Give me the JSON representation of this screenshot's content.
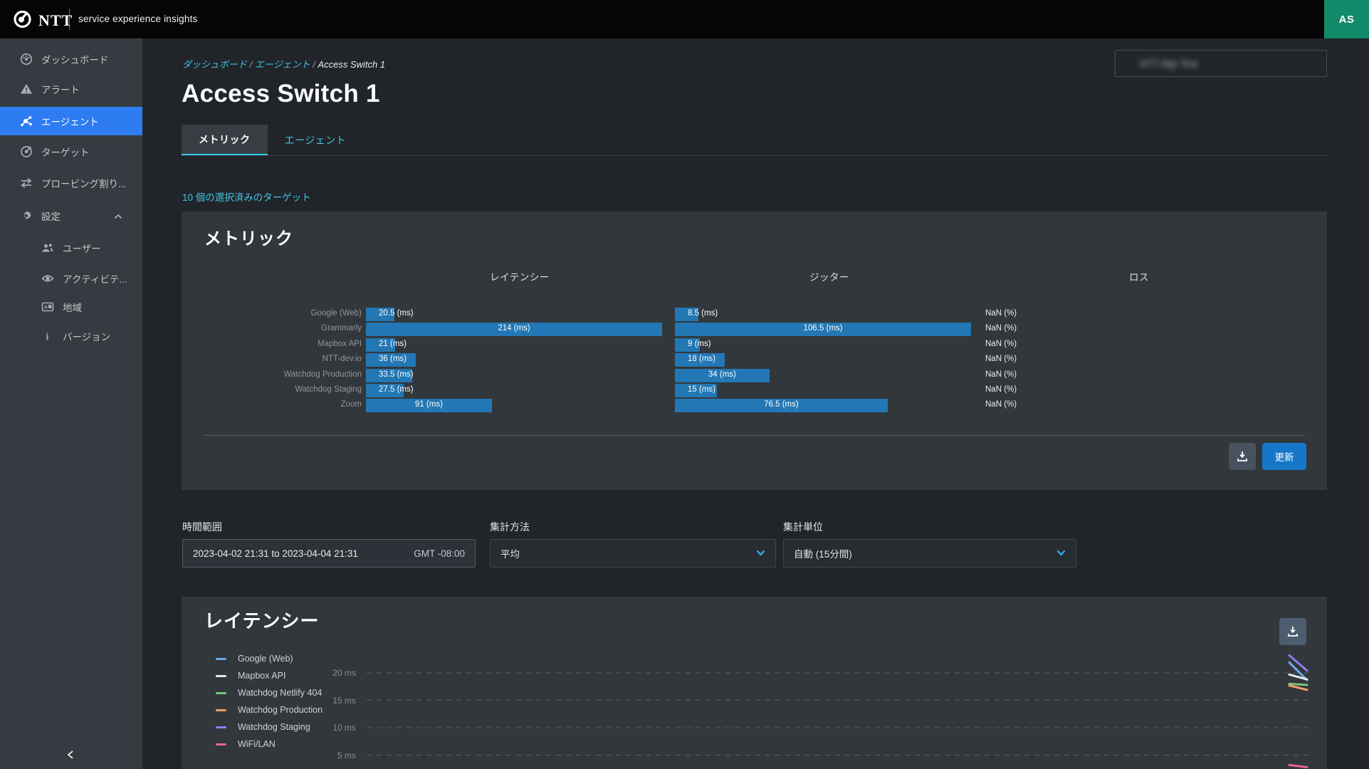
{
  "topbar": {
    "brand": "NTT",
    "product": "service experience insights",
    "avatar_initials": "AS"
  },
  "sidebar": {
    "items": [
      {
        "label": "ダッシュボード",
        "icon": "gauge-icon",
        "active": false
      },
      {
        "label": "アラート",
        "icon": "alert-icon",
        "active": false
      },
      {
        "label": "エージェント",
        "icon": "agents-icon",
        "active": true
      },
      {
        "label": "ターゲット",
        "icon": "target-icon",
        "active": false
      },
      {
        "label": "プロービング割り...",
        "icon": "swap-icon",
        "active": false
      },
      {
        "label": "設定",
        "icon": "gear-icon",
        "active": false,
        "expanded": true,
        "children": [
          {
            "label": "ユーザー",
            "icon": "users-icon"
          },
          {
            "label": "アクティビテ...",
            "icon": "eye-icon"
          },
          {
            "label": "地域",
            "icon": "regions-icon"
          },
          {
            "label": "バージョン",
            "icon": "info-icon"
          }
        ]
      }
    ]
  },
  "header": {
    "breadcrumb": [
      "ダッシュボード",
      "エージェント",
      "Access Switch 1"
    ],
    "separator": "/",
    "title": "Access Switch 1",
    "tabs": [
      {
        "label": "メトリック",
        "active": true
      },
      {
        "label": "エージェント",
        "active": false
      }
    ],
    "agent_selector_value": "NTT Mgr Test"
  },
  "selected_targets_link": "10 個の選択済みのターゲット",
  "metrics_card": {
    "title": "メトリック",
    "refresh_label": "更新",
    "loss_display": "NaN (%)"
  },
  "controls": {
    "time_range_label": "時間範囲",
    "time_range_value": "2023-04-02 21:31 to 2023-04-04 21:31",
    "timezone": "GMT -08:00",
    "agg_method_label": "集計方法",
    "agg_method_value": "平均",
    "agg_unit_label": "集計単位",
    "agg_unit_value": "自動 (15分間)"
  },
  "latency_card": {
    "title": "レイテンシー"
  },
  "chart_data": [
    {
      "type": "bar",
      "title": "メトリック",
      "orientation": "horizontal",
      "categories": [
        "Google (Web)",
        "Grammarly",
        "Mapbox API",
        "NTT-dev.io",
        "Watchdog Production",
        "Watchdog Staging",
        "Zoom"
      ],
      "series": [
        {
          "name": "レイテンシー",
          "unit": "ms",
          "values": [
            20.5,
            214,
            21,
            36,
            33.5,
            27.5,
            91
          ]
        },
        {
          "name": "ジッター",
          "unit": "ms",
          "values": [
            8.5,
            106.5,
            9,
            18,
            34,
            15,
            76.5
          ]
        },
        {
          "name": "ロス",
          "unit": "%",
          "values": [
            "NaN",
            "NaN",
            "NaN",
            "NaN",
            "NaN",
            "NaN",
            "NaN"
          ]
        }
      ],
      "bar_color": "#2377b4"
    },
    {
      "type": "line",
      "title": "レイテンシー",
      "ylabel": "ms",
      "y_ticks": [
        20,
        15,
        10,
        5
      ],
      "tick_suffix": " ms",
      "grid": "dashed",
      "legend_position": "left",
      "x_axis_visible": false,
      "series": [
        {
          "name": "Google (Web)",
          "color": "#6fa9e8",
          "values": [
            21.9,
            18.7
          ]
        },
        {
          "name": "Mapbox API",
          "color": "#e8ebee",
          "values": [
            19.7,
            18.8
          ]
        },
        {
          "name": "Watchdog Netlify 404",
          "color": "#77c97e",
          "values": [
            18.0,
            17.8
          ]
        },
        {
          "name": "Watchdog Production",
          "color": "#f29e63",
          "values": [
            17.7,
            16.9
          ]
        },
        {
          "name": "Watchdog Staging",
          "color": "#8a7ff0",
          "values": [
            23.2,
            20.4
          ]
        },
        {
          "name": "WiFi/LAN",
          "color": "#ee6490",
          "values": [
            3.2,
            2.8
          ]
        }
      ]
    }
  ]
}
